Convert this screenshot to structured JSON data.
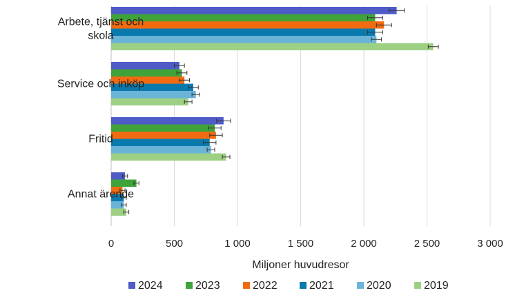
{
  "chart_data": {
    "type": "bar",
    "orientation": "horizontal",
    "categories": [
      [
        "Arbete, tjänst och",
        "skola"
      ],
      [
        "Service och inköp"
      ],
      [
        "Fritid"
      ],
      [
        "Annat ärende"
      ]
    ],
    "series": [
      {
        "name": "2024",
        "color": "#4F5BC6",
        "values": [
          2260,
          540,
          890,
          110
        ],
        "errors": [
          60,
          40,
          55,
          20
        ]
      },
      {
        "name": "2023",
        "color": "#3FA33A",
        "values": [
          2090,
          560,
          820,
          200
        ],
        "errors": [
          60,
          40,
          50,
          20
        ]
      },
      {
        "name": "2022",
        "color": "#F26B10",
        "values": [
          2160,
          580,
          830,
          90
        ],
        "errors": [
          60,
          40,
          50,
          20
        ]
      },
      {
        "name": "2021",
        "color": "#0A7AAE",
        "values": [
          2090,
          650,
          780,
          100
        ],
        "errors": [
          60,
          40,
          50,
          20
        ]
      },
      {
        "name": "2020",
        "color": "#6AB4D8",
        "values": [
          2100,
          670,
          790,
          100
        ],
        "errors": [
          40,
          30,
          30,
          20
        ]
      },
      {
        "name": "2019",
        "color": "#9ED084",
        "values": [
          2550,
          610,
          910,
          120
        ],
        "errors": [
          40,
          30,
          30,
          20
        ]
      }
    ],
    "xlim": [
      0,
      3000
    ],
    "xticks": [
      0,
      500,
      1000,
      1500,
      2000,
      2500,
      3000
    ],
    "xtick_labels": [
      "0",
      "500",
      "1 000",
      "1 500",
      "2 000",
      "2 500",
      "3 000"
    ],
    "xlabel": "Miljoner huvudresor",
    "title": "",
    "grid": "vertical",
    "legend_position": "bottom"
  }
}
